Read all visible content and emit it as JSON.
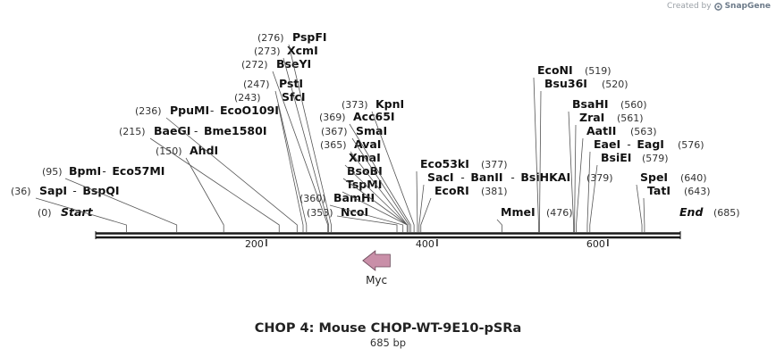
{
  "watermark": {
    "prefix": "Created by",
    "brand": "SnapGene"
  },
  "map": {
    "title": "CHOP 4: Mouse CHOP-WT-9E10-pSRa",
    "length_label": "685 bp",
    "length": 685,
    "ruler": {
      "ticks": [
        200,
        400,
        600
      ]
    },
    "feature": {
      "name": "Myc",
      "start": 313,
      "end": 345,
      "direction": "reverse",
      "color": "#c98fa8"
    },
    "sites": [
      {
        "pos": 0,
        "label": "(0)",
        "names": [
          "Start"
        ],
        "style": "terminal"
      },
      {
        "pos": 36,
        "label": "(36)",
        "names": [
          "SapI",
          "BspQI"
        ]
      },
      {
        "pos": 95,
        "label": "(95)",
        "names": [
          "BpmI",
          "Eco57MI"
        ]
      },
      {
        "pos": 150,
        "label": "(150)",
        "names": [
          "AhdI"
        ]
      },
      {
        "pos": 215,
        "label": "(215)",
        "names": [
          "BaeGI",
          "Bme1580I"
        ]
      },
      {
        "pos": 236,
        "label": "(236)",
        "names": [
          "PpuMI",
          "EcoO109I"
        ]
      },
      {
        "pos": 243,
        "label": "(243)",
        "names": [
          "SfcI"
        ]
      },
      {
        "pos": 247,
        "label": "(247)",
        "names": [
          "PstI"
        ]
      },
      {
        "pos": 272,
        "label": "(272)",
        "names": [
          "BseYI"
        ]
      },
      {
        "pos": 273,
        "label": "(273)",
        "names": [
          "XcmI"
        ]
      },
      {
        "pos": 276,
        "label": "(276)",
        "names": [
          "PspFI"
        ]
      },
      {
        "pos": 353,
        "label": "(353)",
        "names": [
          "NcoI"
        ]
      },
      {
        "pos": 360,
        "label": "(360)",
        "names": [
          "BamHI"
        ]
      },
      {
        "pos": 365,
        "label": "",
        "names": [
          "TspMI"
        ]
      },
      {
        "pos": 365,
        "label": "",
        "names": [
          "BsoBI"
        ]
      },
      {
        "pos": 365,
        "label": "",
        "names": [
          "XmaI"
        ]
      },
      {
        "pos": 365,
        "label": "(365)",
        "names": [
          "AvaI"
        ]
      },
      {
        "pos": 367,
        "label": "(367)",
        "names": [
          "SmaI"
        ]
      },
      {
        "pos": 369,
        "label": "(369)",
        "names": [
          "Acc65I"
        ]
      },
      {
        "pos": 373,
        "label": "(373)",
        "names": [
          "KpnI"
        ]
      },
      {
        "pos": 377,
        "label": "(377)",
        "names": [
          "Eco53kI"
        ]
      },
      {
        "pos": 379,
        "label": "(379)",
        "names": [
          "SacI",
          "BanII",
          "BsiHKAI"
        ]
      },
      {
        "pos": 381,
        "label": "(381)",
        "names": [
          "EcoRI"
        ]
      },
      {
        "pos": 476,
        "label": "(476)",
        "names": [
          "MmeI"
        ]
      },
      {
        "pos": 519,
        "label": "(519)",
        "names": [
          "EcoNI"
        ]
      },
      {
        "pos": 520,
        "label": "(520)",
        "names": [
          "Bsu36I"
        ]
      },
      {
        "pos": 560,
        "label": "(560)",
        "names": [
          "BsaHI"
        ]
      },
      {
        "pos": 561,
        "label": "(561)",
        "names": [
          "ZraI"
        ]
      },
      {
        "pos": 563,
        "label": "(563)",
        "names": [
          "AatII"
        ]
      },
      {
        "pos": 576,
        "label": "(576)",
        "names": [
          "EaeI",
          "EagI"
        ]
      },
      {
        "pos": 579,
        "label": "(579)",
        "names": [
          "BsiEI"
        ]
      },
      {
        "pos": 640,
        "label": "(640)",
        "names": [
          "SpeI"
        ]
      },
      {
        "pos": 643,
        "label": "(643)",
        "names": [
          "TatI"
        ]
      },
      {
        "pos": 685,
        "label": "(685)",
        "names": [
          "End"
        ],
        "style": "terminal"
      }
    ]
  }
}
